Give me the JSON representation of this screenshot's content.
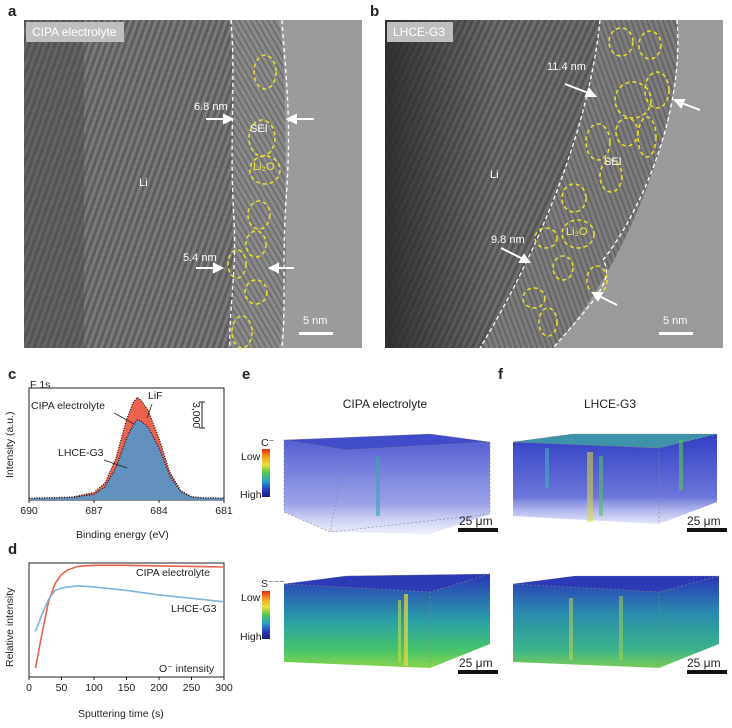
{
  "panels": {
    "a": {
      "letter": "a",
      "tag": "CIPA electrolyte",
      "labels": {
        "li": "Li",
        "sei": "SEI",
        "li2o": "Li₂O",
        "t1": "6.8 nm",
        "t2": "5.4 nm",
        "scale": "5 nm"
      }
    },
    "b": {
      "letter": "b",
      "tag": "LHCE-G3",
      "labels": {
        "li": "Li",
        "sei": "SEI",
        "li2o": "Li₂O",
        "t1": "11.4 nm",
        "t2": "9.8 nm",
        "scale": "5 nm"
      }
    },
    "c": {
      "letter": "c",
      "title": "F 1s",
      "series1": "CIPA electrolyte",
      "series2": "LHCE-G3",
      "peak": "LiF",
      "scalebar": "3,000",
      "xlabel": "Binding energy (eV)",
      "ylabel": "Intensity (a.u.)"
    },
    "d": {
      "letter": "d",
      "series1": "CIPA electrolyte",
      "series2": "LHCE-G3",
      "note": "O⁻ intensity",
      "xlabel": "Sputtering time (s)",
      "ylabel": "Relative intensity"
    },
    "e": {
      "letter": "e",
      "title": "CIPA electrolyte",
      "top_ion": "C⁻",
      "bottom_ion": "S⁻⁻⁻",
      "low": "Low",
      "high": "High",
      "scale": "25 μm"
    },
    "f": {
      "letter": "f",
      "title": "LHCE-G3",
      "scale": "25 μm"
    }
  },
  "chart_data": [
    {
      "type": "line",
      "panel": "c",
      "title": "F 1s",
      "xlabel": "Binding energy (eV)",
      "ylabel": "Intensity (a.u.)",
      "x_reversed": true,
      "xlim": [
        690,
        681
      ],
      "xticks": [
        690,
        687,
        684,
        681
      ],
      "annotation": "LiF",
      "scalebar_label": "3,000",
      "series": [
        {
          "name": "CIPA electrolyte",
          "color": "#ee5a45",
          "x": [
            690,
            689,
            688,
            687,
            686.5,
            686,
            685.5,
            685.2,
            685,
            684.8,
            684.5,
            684,
            683.5,
            683,
            682.5,
            682,
            681
          ],
          "y": [
            100,
            120,
            160,
            400,
            900,
            2200,
            4300,
            5200,
            5500,
            5300,
            4800,
            3300,
            1500,
            500,
            180,
            110,
            100
          ]
        },
        {
          "name": "LHCE-G3",
          "color": "#5b93c4",
          "x": [
            690,
            689,
            688,
            687,
            686.5,
            686,
            685.5,
            685.2,
            685,
            684.8,
            684.5,
            684,
            683.5,
            683,
            682.5,
            682,
            681
          ],
          "y": [
            100,
            115,
            140,
            300,
            700,
            1700,
            3300,
            4000,
            4300,
            4200,
            3900,
            2800,
            1300,
            450,
            160,
            110,
            100
          ]
        }
      ]
    },
    {
      "type": "line",
      "panel": "d",
      "xlabel": "Sputtering time (s)",
      "ylabel": "Relative intensity",
      "xlim": [
        0,
        300
      ],
      "xticks": [
        0,
        50,
        100,
        150,
        200,
        250,
        300
      ],
      "annotation": "O⁻ intensity",
      "series": [
        {
          "name": "CIPA electrolyte",
          "color": "#e5634a",
          "x": [
            10,
            20,
            30,
            40,
            50,
            60,
            75,
            100,
            150,
            200,
            250,
            300
          ],
          "y": [
            0.08,
            0.38,
            0.66,
            0.82,
            0.9,
            0.94,
            0.97,
            0.98,
            0.98,
            0.975,
            0.97,
            0.965
          ]
        },
        {
          "name": "LHCE-G3",
          "color": "#7fb3dd",
          "x": [
            10,
            20,
            30,
            40,
            50,
            60,
            75,
            100,
            150,
            200,
            250,
            300
          ],
          "y": [
            0.4,
            0.55,
            0.68,
            0.76,
            0.78,
            0.79,
            0.8,
            0.79,
            0.76,
            0.72,
            0.69,
            0.66
          ]
        }
      ]
    }
  ]
}
